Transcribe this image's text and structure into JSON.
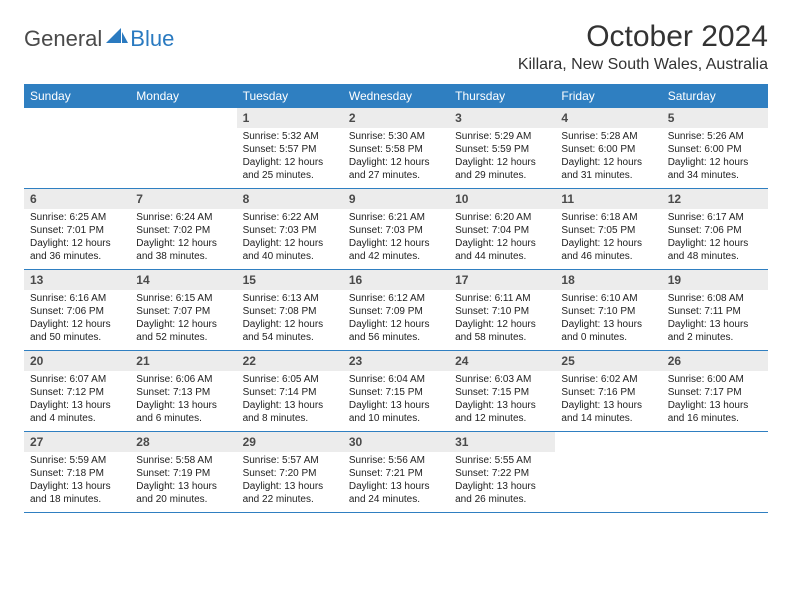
{
  "logo": {
    "general": "General",
    "blue": "Blue"
  },
  "title": "October 2024",
  "location": "Killara, New South Wales, Australia",
  "colors": {
    "accent": "#2f7fc1",
    "daynum_bg": "#ececec"
  },
  "weekdays": [
    "Sunday",
    "Monday",
    "Tuesday",
    "Wednesday",
    "Thursday",
    "Friday",
    "Saturday"
  ],
  "weeks": [
    [
      {
        "n": "",
        "sr": "",
        "ss": "",
        "dl": ""
      },
      {
        "n": "",
        "sr": "",
        "ss": "",
        "dl": ""
      },
      {
        "n": "1",
        "sr": "Sunrise: 5:32 AM",
        "ss": "Sunset: 5:57 PM",
        "dl": "Daylight: 12 hours and 25 minutes."
      },
      {
        "n": "2",
        "sr": "Sunrise: 5:30 AM",
        "ss": "Sunset: 5:58 PM",
        "dl": "Daylight: 12 hours and 27 minutes."
      },
      {
        "n": "3",
        "sr": "Sunrise: 5:29 AM",
        "ss": "Sunset: 5:59 PM",
        "dl": "Daylight: 12 hours and 29 minutes."
      },
      {
        "n": "4",
        "sr": "Sunrise: 5:28 AM",
        "ss": "Sunset: 6:00 PM",
        "dl": "Daylight: 12 hours and 31 minutes."
      },
      {
        "n": "5",
        "sr": "Sunrise: 5:26 AM",
        "ss": "Sunset: 6:00 PM",
        "dl": "Daylight: 12 hours and 34 minutes."
      }
    ],
    [
      {
        "n": "6",
        "sr": "Sunrise: 6:25 AM",
        "ss": "Sunset: 7:01 PM",
        "dl": "Daylight: 12 hours and 36 minutes."
      },
      {
        "n": "7",
        "sr": "Sunrise: 6:24 AM",
        "ss": "Sunset: 7:02 PM",
        "dl": "Daylight: 12 hours and 38 minutes."
      },
      {
        "n": "8",
        "sr": "Sunrise: 6:22 AM",
        "ss": "Sunset: 7:03 PM",
        "dl": "Daylight: 12 hours and 40 minutes."
      },
      {
        "n": "9",
        "sr": "Sunrise: 6:21 AM",
        "ss": "Sunset: 7:03 PM",
        "dl": "Daylight: 12 hours and 42 minutes."
      },
      {
        "n": "10",
        "sr": "Sunrise: 6:20 AM",
        "ss": "Sunset: 7:04 PM",
        "dl": "Daylight: 12 hours and 44 minutes."
      },
      {
        "n": "11",
        "sr": "Sunrise: 6:18 AM",
        "ss": "Sunset: 7:05 PM",
        "dl": "Daylight: 12 hours and 46 minutes."
      },
      {
        "n": "12",
        "sr": "Sunrise: 6:17 AM",
        "ss": "Sunset: 7:06 PM",
        "dl": "Daylight: 12 hours and 48 minutes."
      }
    ],
    [
      {
        "n": "13",
        "sr": "Sunrise: 6:16 AM",
        "ss": "Sunset: 7:06 PM",
        "dl": "Daylight: 12 hours and 50 minutes."
      },
      {
        "n": "14",
        "sr": "Sunrise: 6:15 AM",
        "ss": "Sunset: 7:07 PM",
        "dl": "Daylight: 12 hours and 52 minutes."
      },
      {
        "n": "15",
        "sr": "Sunrise: 6:13 AM",
        "ss": "Sunset: 7:08 PM",
        "dl": "Daylight: 12 hours and 54 minutes."
      },
      {
        "n": "16",
        "sr": "Sunrise: 6:12 AM",
        "ss": "Sunset: 7:09 PM",
        "dl": "Daylight: 12 hours and 56 minutes."
      },
      {
        "n": "17",
        "sr": "Sunrise: 6:11 AM",
        "ss": "Sunset: 7:10 PM",
        "dl": "Daylight: 12 hours and 58 minutes."
      },
      {
        "n": "18",
        "sr": "Sunrise: 6:10 AM",
        "ss": "Sunset: 7:10 PM",
        "dl": "Daylight: 13 hours and 0 minutes."
      },
      {
        "n": "19",
        "sr": "Sunrise: 6:08 AM",
        "ss": "Sunset: 7:11 PM",
        "dl": "Daylight: 13 hours and 2 minutes."
      }
    ],
    [
      {
        "n": "20",
        "sr": "Sunrise: 6:07 AM",
        "ss": "Sunset: 7:12 PM",
        "dl": "Daylight: 13 hours and 4 minutes."
      },
      {
        "n": "21",
        "sr": "Sunrise: 6:06 AM",
        "ss": "Sunset: 7:13 PM",
        "dl": "Daylight: 13 hours and 6 minutes."
      },
      {
        "n": "22",
        "sr": "Sunrise: 6:05 AM",
        "ss": "Sunset: 7:14 PM",
        "dl": "Daylight: 13 hours and 8 minutes."
      },
      {
        "n": "23",
        "sr": "Sunrise: 6:04 AM",
        "ss": "Sunset: 7:15 PM",
        "dl": "Daylight: 13 hours and 10 minutes."
      },
      {
        "n": "24",
        "sr": "Sunrise: 6:03 AM",
        "ss": "Sunset: 7:15 PM",
        "dl": "Daylight: 13 hours and 12 minutes."
      },
      {
        "n": "25",
        "sr": "Sunrise: 6:02 AM",
        "ss": "Sunset: 7:16 PM",
        "dl": "Daylight: 13 hours and 14 minutes."
      },
      {
        "n": "26",
        "sr": "Sunrise: 6:00 AM",
        "ss": "Sunset: 7:17 PM",
        "dl": "Daylight: 13 hours and 16 minutes."
      }
    ],
    [
      {
        "n": "27",
        "sr": "Sunrise: 5:59 AM",
        "ss": "Sunset: 7:18 PM",
        "dl": "Daylight: 13 hours and 18 minutes."
      },
      {
        "n": "28",
        "sr": "Sunrise: 5:58 AM",
        "ss": "Sunset: 7:19 PM",
        "dl": "Daylight: 13 hours and 20 minutes."
      },
      {
        "n": "29",
        "sr": "Sunrise: 5:57 AM",
        "ss": "Sunset: 7:20 PM",
        "dl": "Daylight: 13 hours and 22 minutes."
      },
      {
        "n": "30",
        "sr": "Sunrise: 5:56 AM",
        "ss": "Sunset: 7:21 PM",
        "dl": "Daylight: 13 hours and 24 minutes."
      },
      {
        "n": "31",
        "sr": "Sunrise: 5:55 AM",
        "ss": "Sunset: 7:22 PM",
        "dl": "Daylight: 13 hours and 26 minutes."
      },
      {
        "n": "",
        "sr": "",
        "ss": "",
        "dl": ""
      },
      {
        "n": "",
        "sr": "",
        "ss": "",
        "dl": ""
      }
    ]
  ]
}
